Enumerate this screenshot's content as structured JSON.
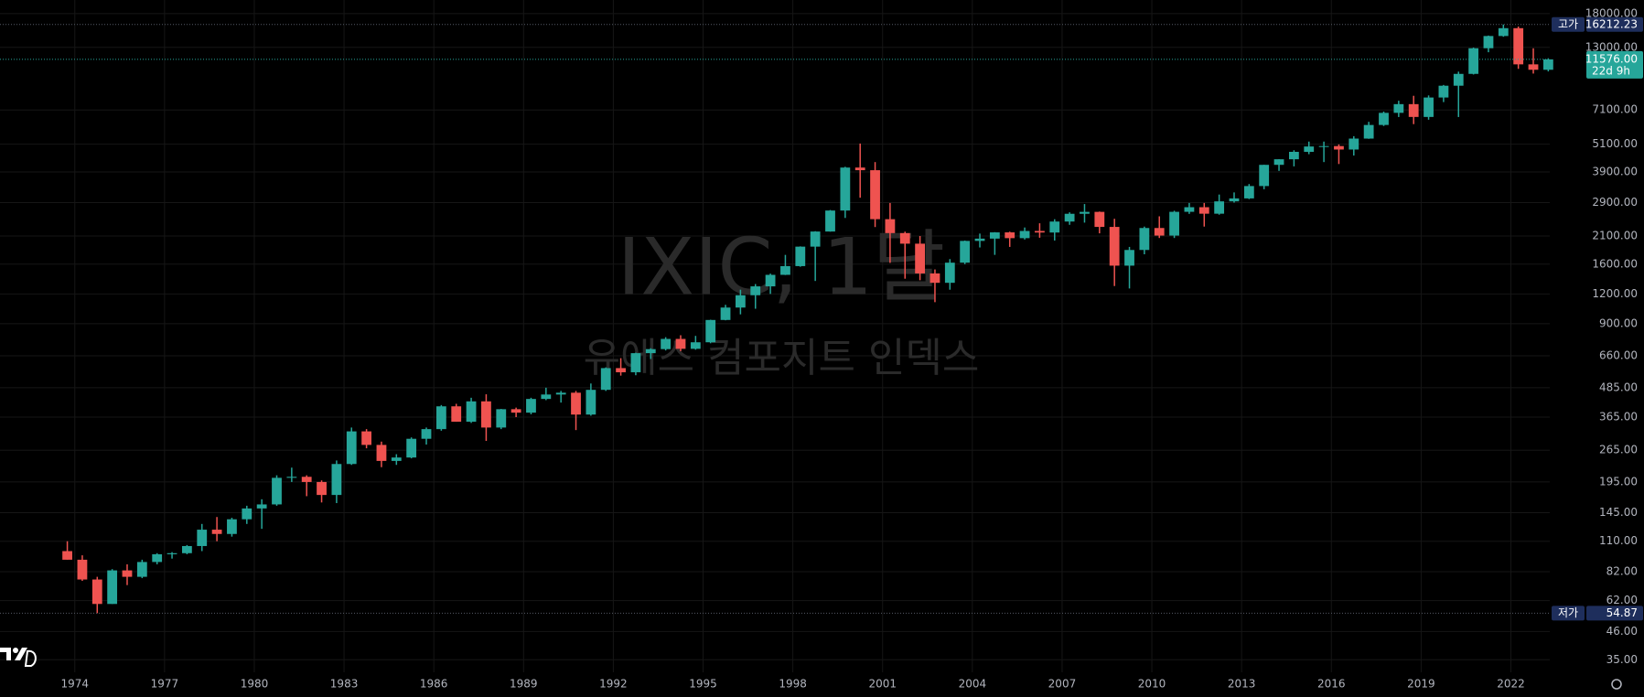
{
  "chart_data": {
    "type": "candlestick",
    "title": "IXIC, 1달",
    "subtitle": "유에스 컴포지트 인덱스",
    "log_scale": true,
    "grid": true,
    "up_color": "#26a69a",
    "down_color": "#ef5350",
    "x": [
      1973.5,
      1974,
      1974.5,
      1975,
      1975.5,
      1976,
      1976.5,
      1977,
      1977.5,
      1978,
      1978.5,
      1979,
      1979.5,
      1980,
      1980.5,
      1981,
      1981.5,
      1982,
      1982.5,
      1983,
      1983.5,
      1984,
      1984.5,
      1985,
      1985.5,
      1986,
      1986.5,
      1987,
      1987.5,
      1988,
      1988.5,
      1989,
      1989.5,
      1990,
      1990.5,
      1991,
      1991.5,
      1992,
      1992.5,
      1993,
      1993.5,
      1994,
      1994.5,
      1995,
      1995.5,
      1996,
      1996.5,
      1997,
      1997.5,
      1998,
      1998.5,
      1999,
      1999.5,
      2000,
      2000.5,
      2001,
      2001.5,
      2002,
      2002.5,
      2003,
      2003.5,
      2004,
      2004.5,
      2005,
      2005.5,
      2006,
      2006.5,
      2007,
      2007.5,
      2008,
      2008.5,
      2009,
      2009.5,
      2010,
      2010.5,
      2011,
      2011.5,
      2012,
      2012.5,
      2013,
      2013.5,
      2014,
      2014.5,
      2015,
      2015.5,
      2016,
      2016.5,
      2017,
      2017.5,
      2018,
      2018.5,
      2019,
      2019.5,
      2020,
      2020.5,
      2021,
      2021.5,
      2022,
      2022.5,
      2023
    ],
    "open": [
      100,
      92,
      76,
      60,
      83,
      78,
      90,
      97,
      98,
      105,
      123,
      118,
      136,
      151,
      157,
      203,
      205,
      195,
      172,
      232,
      318,
      279,
      239,
      247,
      296,
      325,
      405,
      349,
      425,
      330,
      394,
      381,
      435,
      454,
      462,
      374,
      475,
      586,
      563,
      677,
      704,
      777,
      706,
      752,
      933,
      1052,
      1185,
      1291,
      1443,
      1570,
      1895,
      2193,
      2686,
      4069,
      3966,
      2471,
      2160,
      1950,
      1463,
      1336,
      1623,
      2003,
      2048,
      2175,
      2057,
      2205,
      2172,
      2415,
      2603,
      2652,
      2293,
      1577,
      1835,
      2269,
      2109,
      2653,
      2774,
      2605,
      2935,
      3020,
      3403,
      4177,
      4408,
      4736,
      4987,
      5007,
      4843,
      5383,
      6140,
      6903,
      7510,
      6635,
      8006,
      8973,
      10059,
      12888,
      14504,
      15645,
      11029,
      10466
    ],
    "high": [
      110,
      96,
      78,
      84,
      88,
      92,
      98,
      99,
      106,
      130,
      139,
      138,
      155,
      165,
      208,
      224,
      208,
      198,
      240,
      330,
      325,
      288,
      255,
      300,
      330,
      410,
      415,
      440,
      455,
      395,
      400,
      440,
      485,
      470,
      470,
      505,
      590,
      645,
      680,
      710,
      790,
      805,
      800,
      935,
      1080,
      1250,
      1320,
      1460,
      1750,
      1900,
      2200,
      2700,
      4100,
      5132,
      4290,
      2890,
      2190,
      2100,
      1520,
      1680,
      2010,
      2150,
      2180,
      2190,
      2280,
      2375,
      2470,
      2640,
      2860,
      2660,
      2480,
      1890,
      2300,
      2540,
      2680,
      2890,
      2890,
      3135,
      3200,
      3470,
      4180,
      4410,
      4810,
      5230,
      5230,
      5090,
      5510,
      6330,
      6990,
      7760,
      8140,
      8170,
      9040,
      10280,
      12970,
      14570,
      16212.23,
      15900,
      12880,
      11700
    ],
    "low": [
      92,
      75,
      54.87,
      60,
      72,
      77,
      88,
      93,
      97,
      100,
      110,
      115,
      130,
      124,
      155,
      195,
      170,
      160,
      159,
      230,
      270,
      225,
      230,
      245,
      280,
      320,
      349,
      345,
      290,
      325,
      365,
      375,
      430,
      420,
      322,
      370,
      470,
      545,
      547,
      640,
      695,
      690,
      700,
      745,
      930,
      985,
      1040,
      1200,
      1440,
      1560,
      1360,
      2190,
      2500,
      3040,
      2290,
      1620,
      1390,
      1370,
      1108,
      1250,
      1600,
      1880,
      1750,
      1890,
      2030,
      2065,
      2010,
      2340,
      2390,
      2155,
      1295,
      1265,
      1760,
      2060,
      2060,
      2600,
      2300,
      2580,
      2900,
      3000,
      3300,
      3940,
      4115,
      4630,
      4290,
      4210,
      4570,
      5370,
      6080,
      6630,
      6190,
      6460,
      7660,
      6630,
      10000,
      12400,
      14400,
      10560,
      10090,
      10300
    ],
    "close": [
      92,
      76,
      60,
      83,
      78,
      90,
      97,
      98,
      105,
      123,
      118,
      136,
      151,
      157,
      203,
      205,
      195,
      172,
      232,
      318,
      279,
      239,
      247,
      296,
      325,
      405,
      349,
      425,
      330,
      394,
      381,
      435,
      454,
      462,
      374,
      475,
      586,
      563,
      677,
      704,
      777,
      706,
      752,
      933,
      1052,
      1185,
      1291,
      1443,
      1570,
      1895,
      2193,
      2686,
      4069,
      3966,
      2471,
      2160,
      1950,
      1463,
      1336,
      1623,
      2003,
      2048,
      2175,
      2057,
      2205,
      2172,
      2415,
      2603,
      2652,
      2293,
      1577,
      1835,
      2269,
      2109,
      2653,
      2774,
      2605,
      2935,
      3020,
      3403,
      4177,
      4408,
      4736,
      4987,
      5007,
      4843,
      5383,
      6140,
      6903,
      7510,
      6635,
      8006,
      8973,
      10059,
      12888,
      14504,
      15645,
      11029,
      10466,
      11576
    ],
    "xlim": [
      1971.5,
      2023.3
    ],
    "xticks": [
      1974,
      1977,
      1980,
      1983,
      1986,
      1989,
      1992,
      1995,
      1998,
      2001,
      2004,
      2007,
      2010,
      2013,
      2016,
      2019,
      2022
    ],
    "ylim": [
      31,
      20540
    ],
    "yticks": [
      {
        "value": 35,
        "label": "35.00"
      },
      {
        "value": 46,
        "label": "46.00"
      },
      {
        "value": 62,
        "label": "62.00"
      },
      {
        "value": 82,
        "label": "82.00"
      },
      {
        "value": 110,
        "label": "110.00"
      },
      {
        "value": 145,
        "label": "145.00"
      },
      {
        "value": 195,
        "label": "195.00"
      },
      {
        "value": 265,
        "label": "265.00"
      },
      {
        "value": 365,
        "label": "365.00"
      },
      {
        "value": 485,
        "label": "485.00"
      },
      {
        "value": 660,
        "label": "660.00"
      },
      {
        "value": 900,
        "label": "900.00"
      },
      {
        "value": 1200,
        "label": "1200.00"
      },
      {
        "value": 1600,
        "label": "1600.00"
      },
      {
        "value": 2100,
        "label": "2100.00"
      },
      {
        "value": 2900,
        "label": "2900.00"
      },
      {
        "value": 3900,
        "label": "3900.00"
      },
      {
        "value": 5100,
        "label": "5100.00"
      },
      {
        "value": 7100,
        "label": "7100.00"
      },
      {
        "value": 13000,
        "label": "13000.00"
      },
      {
        "value": 18000,
        "label": "18000.00"
      }
    ],
    "high_marker": {
      "label": "고가",
      "value": 16212.23
    },
    "low_marker": {
      "label": "저가",
      "value": 54.87
    },
    "last_price": {
      "value": 11576,
      "value_label": "11576.00",
      "countdown": "22d 9h"
    }
  }
}
